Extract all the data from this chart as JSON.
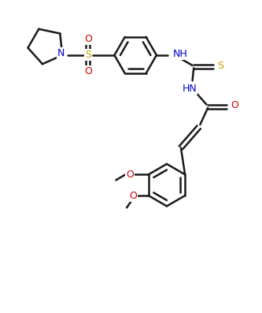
{
  "background": "#ffffff",
  "line_color": "#1a1a1a",
  "text_color": "#000000",
  "label_S": "#c8a000",
  "label_N": "#0000cd",
  "label_O": "#cc0000",
  "lw": 1.8,
  "figsize": [
    3.33,
    3.97
  ],
  "dpi": 100,
  "xlim": [
    0,
    10
  ],
  "ylim": [
    0,
    12
  ]
}
